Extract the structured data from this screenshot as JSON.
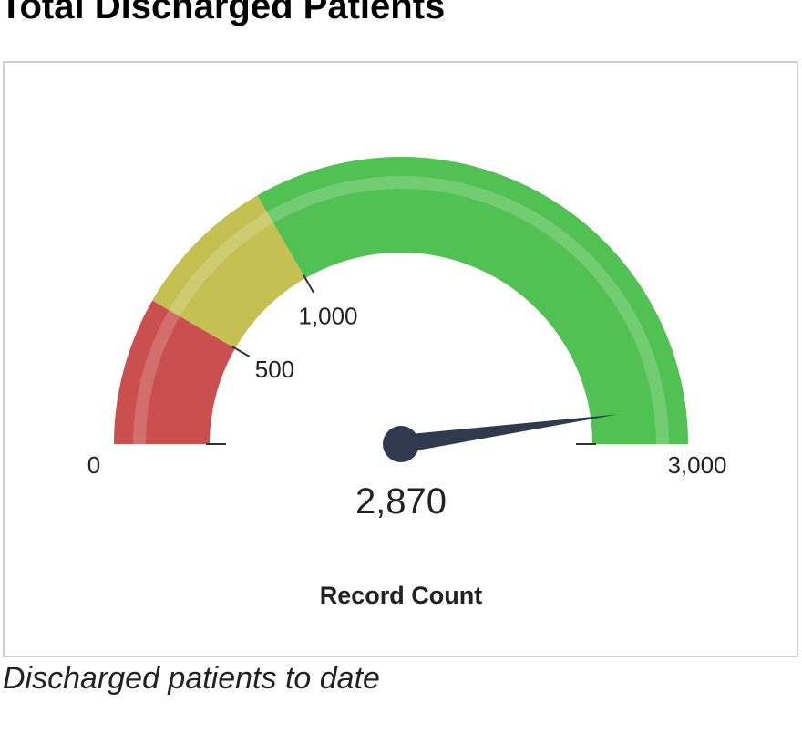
{
  "chart_data": {
    "type": "gauge",
    "title": "Total Discharged Patients",
    "value": 2870,
    "value_label": "2,870",
    "ylabel": "Record Count",
    "ylim": [
      0,
      3000
    ],
    "yticks": [
      0,
      500,
      {
        "value": 1000,
        "label": "1,000"
      },
      {
        "value": 3000,
        "label": "3,000"
      }
    ],
    "bands": [
      {
        "from": 0,
        "to": 500,
        "color": "#c9504f"
      },
      {
        "from": 500,
        "to": 1000,
        "color": "#c4c152"
      },
      {
        "from": 1000,
        "to": 3000,
        "color": "#52c154"
      }
    ],
    "needle_color": "#2f3a4f",
    "caption": "Discharged patients to date"
  }
}
